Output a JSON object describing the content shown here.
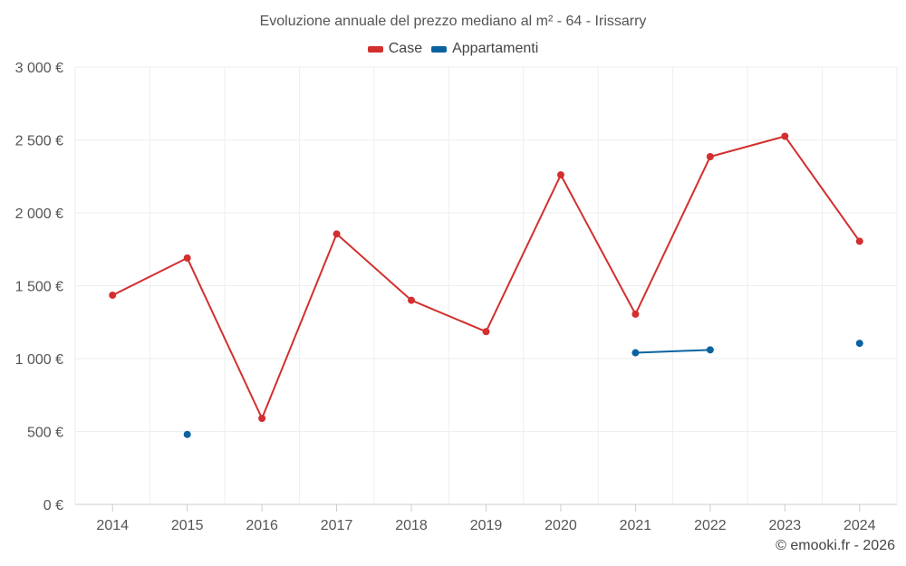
{
  "chart_data": {
    "type": "line",
    "title": "Evoluzione annuale del prezzo mediano al m² - 64 - Irissarry",
    "categories": [
      "2014",
      "2015",
      "2016",
      "2017",
      "2018",
      "2019",
      "2020",
      "2021",
      "2022",
      "2023",
      "2024"
    ],
    "series": [
      {
        "name": "Case",
        "color": "#d32f2f",
        "values": [
          1435,
          1690,
          590,
          1855,
          1400,
          1185,
          2260,
          1305,
          2385,
          2525,
          1805
        ]
      },
      {
        "name": "Appartamenti",
        "color": "#0a63a0",
        "values": [
          null,
          480,
          null,
          null,
          null,
          null,
          null,
          1040,
          1060,
          null,
          1105
        ]
      }
    ],
    "y_ticks": [
      {
        "value": 0,
        "label": "0 €"
      },
      {
        "value": 500,
        "label": "500 €"
      },
      {
        "value": 1000,
        "label": "1 000 €"
      },
      {
        "value": 1500,
        "label": "1 500 €"
      },
      {
        "value": 2000,
        "label": "2 000 €"
      },
      {
        "value": 2500,
        "label": "2 500 €"
      },
      {
        "value": 3000,
        "label": "3 000 €"
      }
    ],
    "ylim": [
      0,
      3000
    ],
    "grid": true,
    "legend_position": "top"
  },
  "footer": {
    "credit": "© emooki.fr - 2026"
  }
}
